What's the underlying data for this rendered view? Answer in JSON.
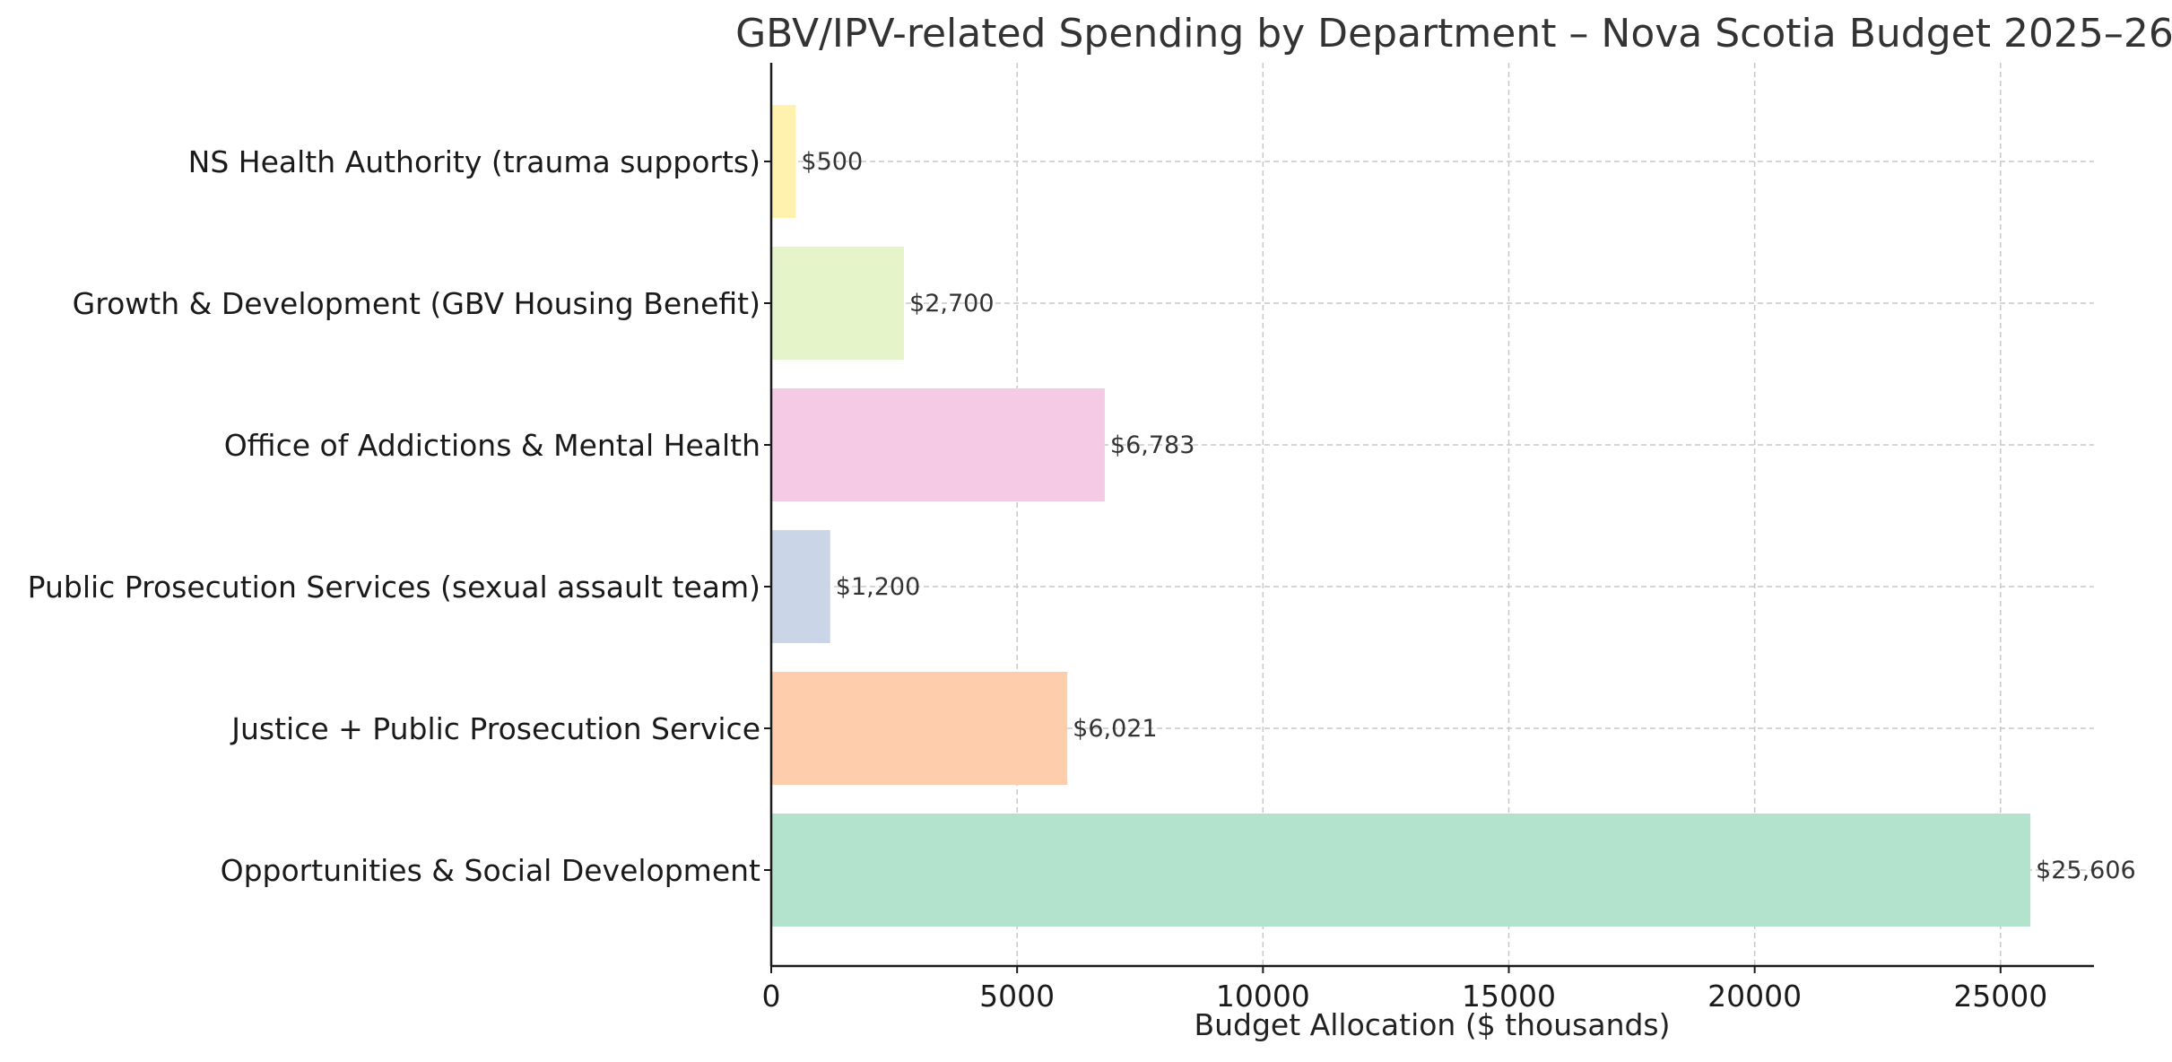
{
  "chart_data": {
    "type": "bar",
    "orientation": "horizontal",
    "title": "GBV/IPV-related Spending by Department – Nova Scotia Budget 2025–26",
    "xlabel": "Budget Allocation ($ thousands)",
    "ylabel": "",
    "xlim": [
      0,
      26900
    ],
    "xticks": [
      0,
      5000,
      10000,
      15000,
      20000,
      25000
    ],
    "grid": true,
    "categories": [
      "Opportunities & Social Development",
      "Justice + Public Prosecution Service",
      "Public Prosecution Services (sexual assault team)",
      "Office of Addictions & Mental Health",
      "Growth & Development (GBV Housing Benefit)",
      "NS Health Authority (trauma supports)"
    ],
    "values": [
      25606,
      6021,
      1200,
      6783,
      2700,
      500
    ],
    "data_labels": [
      "$25,606",
      "$6,021",
      "$1,200",
      "$6,783",
      "$2,700",
      "$500"
    ],
    "colors": [
      "#b3e2cd",
      "#fdcdac",
      "#cbd5e8",
      "#f4cae4",
      "#e6f5c9",
      "#fff2ae"
    ]
  }
}
